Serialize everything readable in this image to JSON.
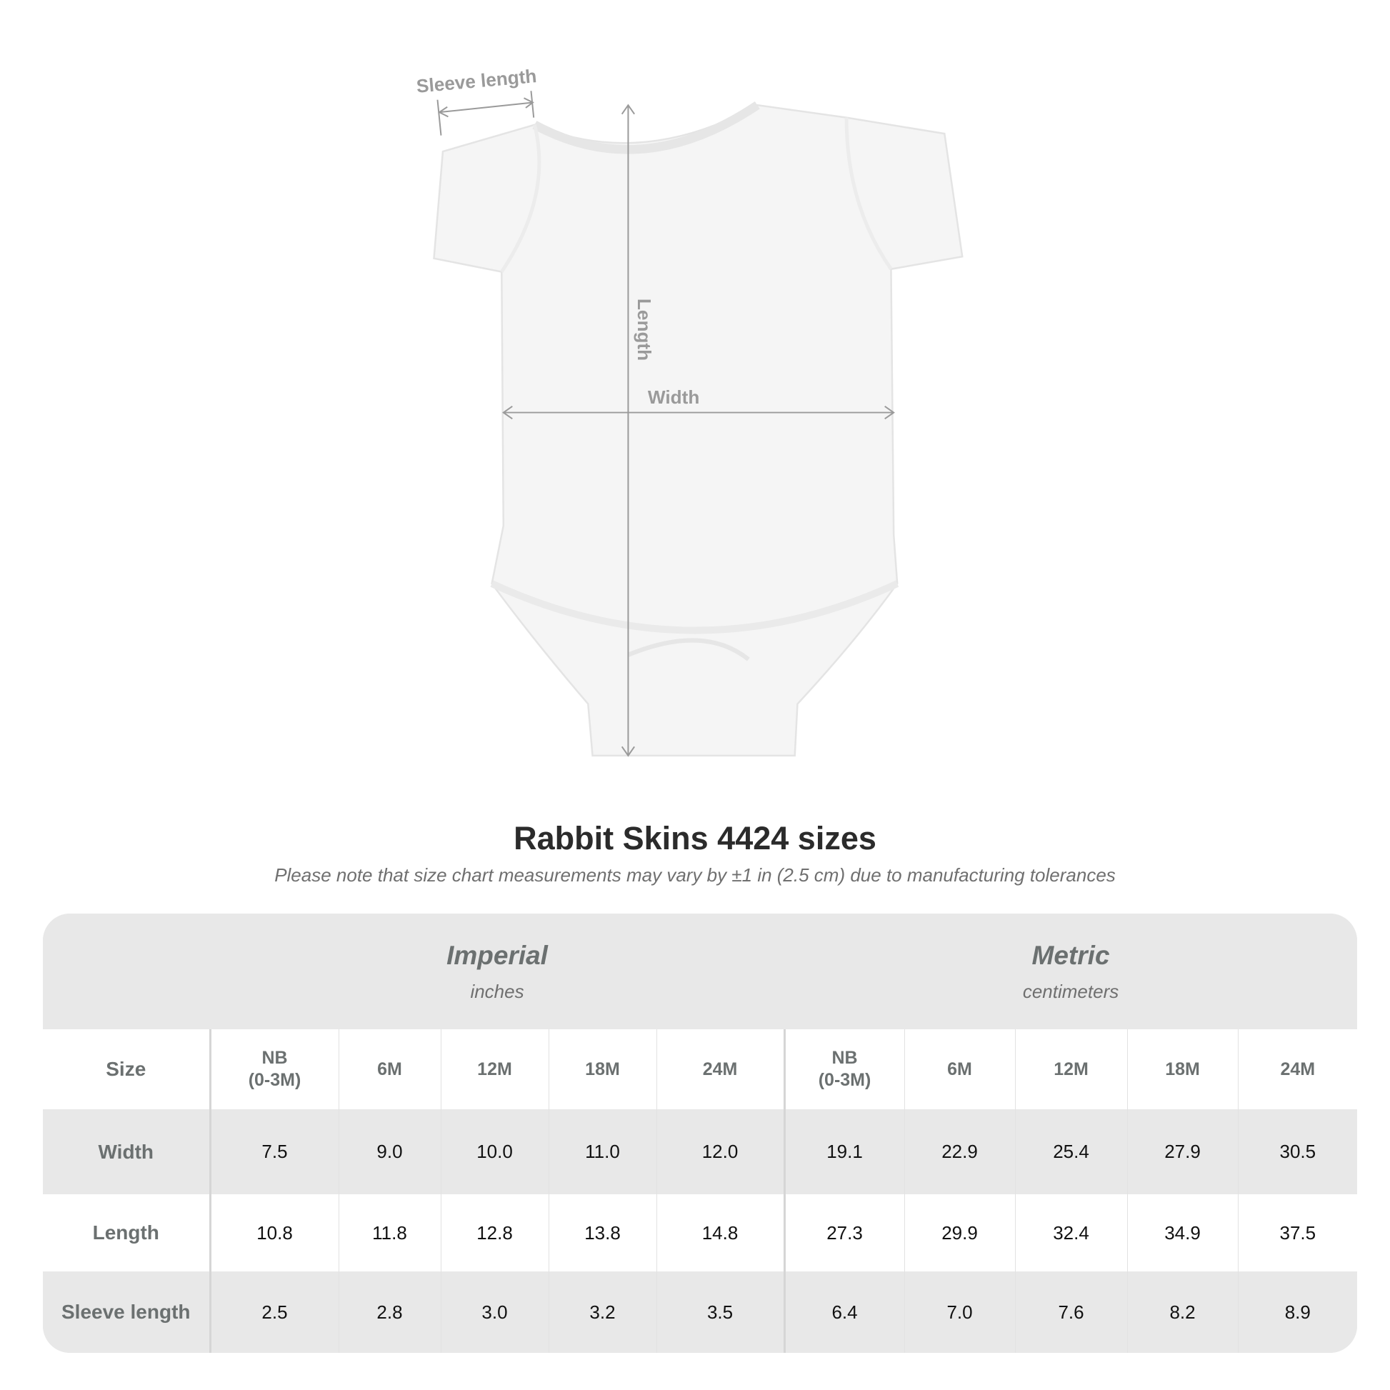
{
  "diagram": {
    "labels": {
      "sleeve": "Sleeve length",
      "length": "Length",
      "width": "Width"
    }
  },
  "title": "Rabbit Skins 4424 sizes",
  "subtitle": "Please note that size chart measurements may vary by ±1 in (2.5 cm) due to manufacturing tolerances",
  "table": {
    "imperial": {
      "label": "Imperial",
      "unit": "inches"
    },
    "metric": {
      "label": "Metric",
      "unit": "centimeters"
    },
    "size_label": "Size",
    "sizes": [
      "NB\n(0-3M)",
      "6M",
      "12M",
      "18M",
      "24M"
    ],
    "rows": [
      {
        "label": "Width",
        "imperial": [
          "7.5",
          "9.0",
          "10.0",
          "11.0",
          "12.0"
        ],
        "metric": [
          "19.1",
          "22.9",
          "25.4",
          "27.9",
          "30.5"
        ]
      },
      {
        "label": "Length",
        "imperial": [
          "10.8",
          "11.8",
          "12.8",
          "13.8",
          "14.8"
        ],
        "metric": [
          "27.3",
          "29.9",
          "32.4",
          "34.9",
          "37.5"
        ]
      },
      {
        "label": "Sleeve length",
        "imperial": [
          "2.5",
          "2.8",
          "3.0",
          "3.2",
          "3.5"
        ],
        "metric": [
          "6.4",
          "7.0",
          "7.6",
          "8.2",
          "8.9"
        ]
      }
    ]
  },
  "colors": {
    "header_bg": "#e8e8e8",
    "label_text": "#6b7070",
    "measure_lines": "#9a9a9a"
  }
}
